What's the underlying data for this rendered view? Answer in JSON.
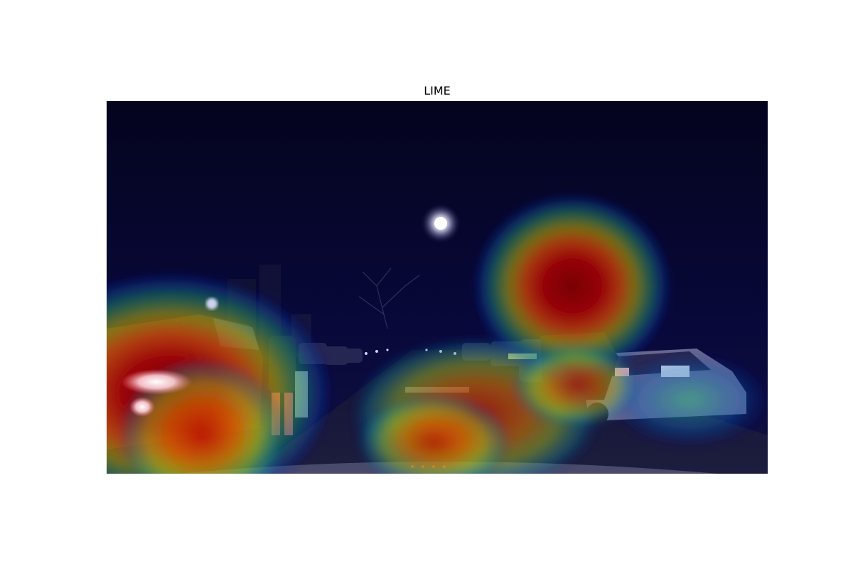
{
  "figure": {
    "title": "LIME"
  },
  "image": {
    "description_icon": "lime-saliency-heatmap-icon",
    "colormap": "jet"
  }
}
